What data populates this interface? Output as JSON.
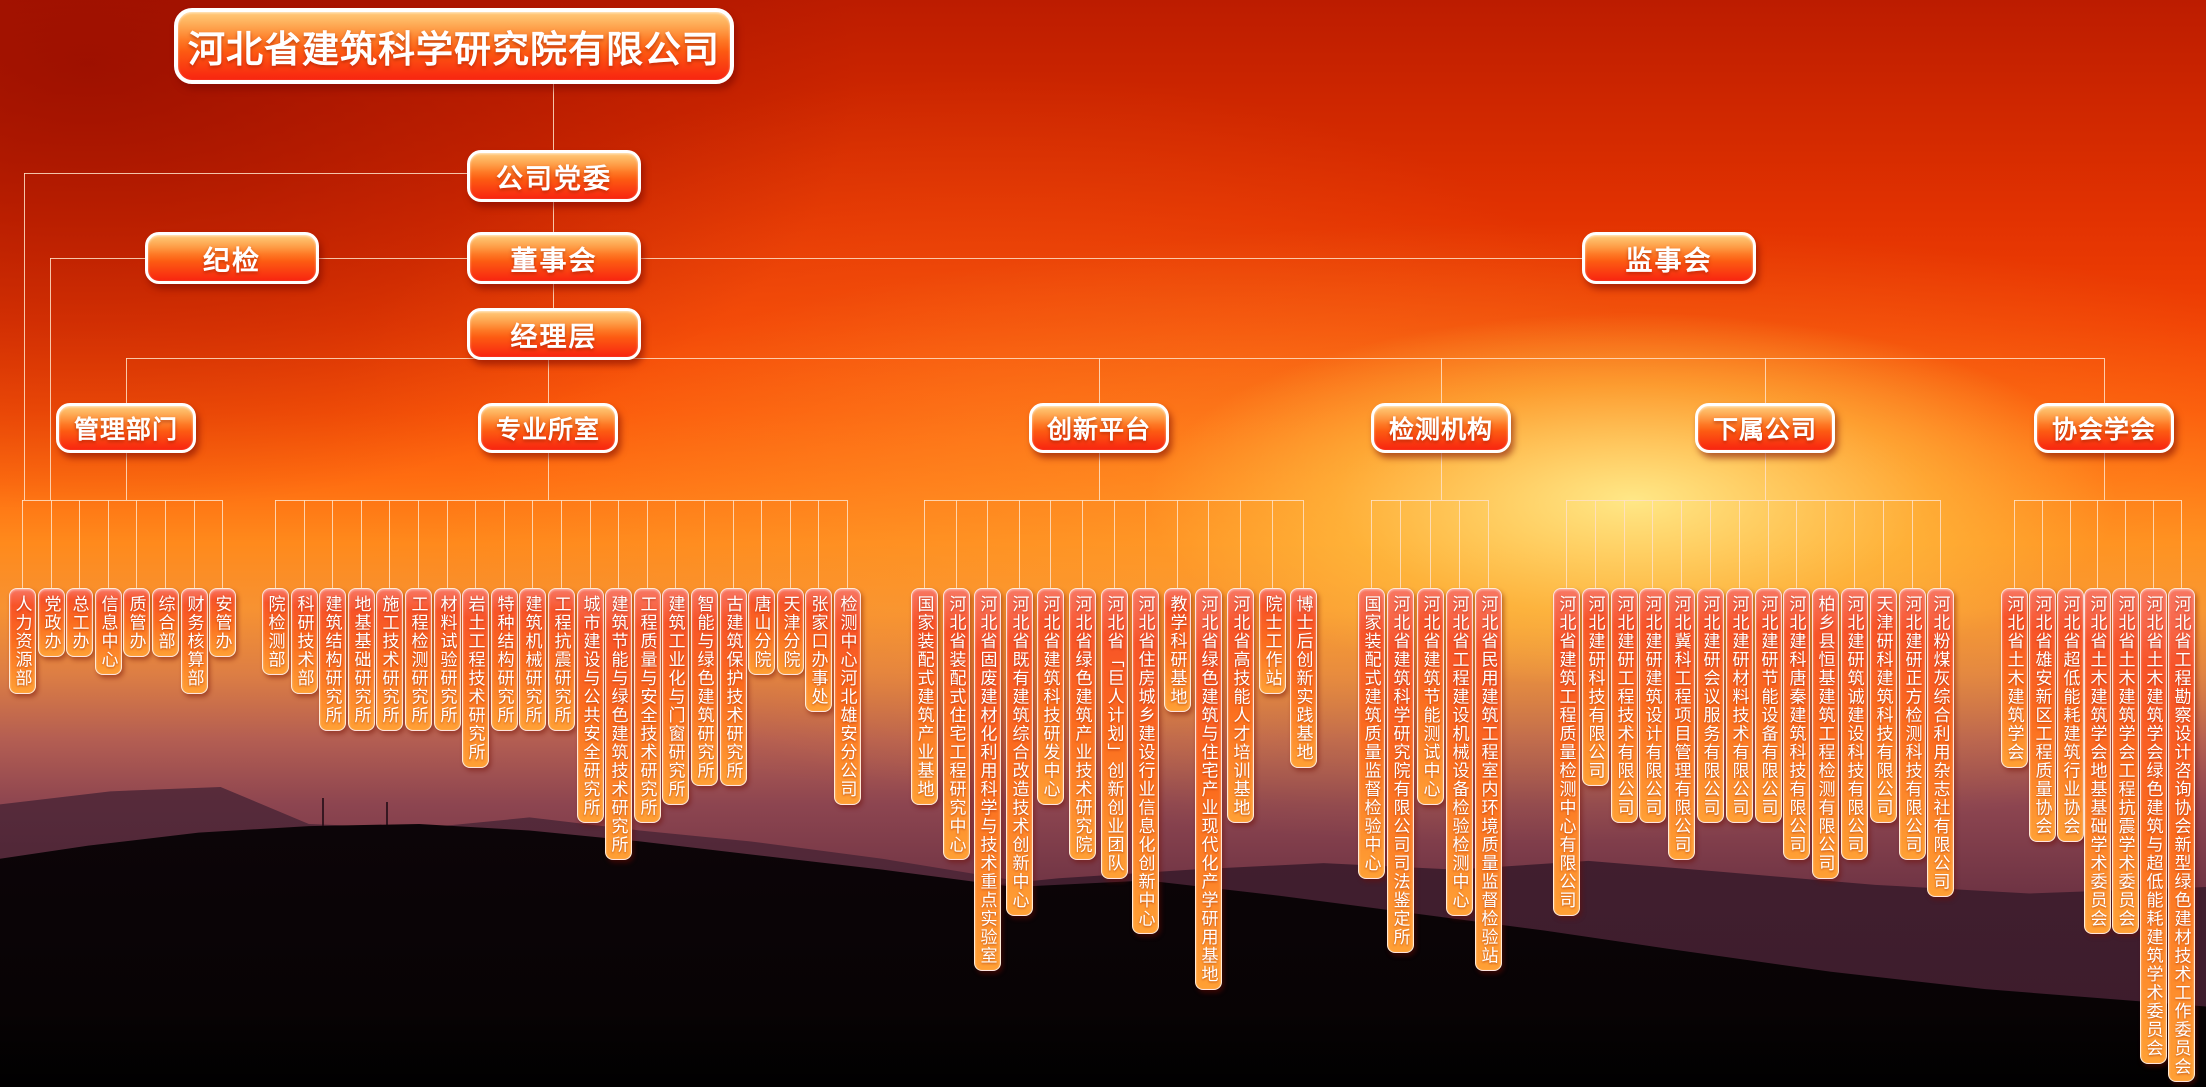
{
  "org": {
    "root": "河北省建筑科学研究院有限公司",
    "level2": {
      "party_committee": "公司党委",
      "discipline_inspection": "纪检",
      "board_of_directors": "董事会",
      "board_of_supervisors": "监事会",
      "management_team": "经理层"
    },
    "groups": [
      {
        "label": "管理部门",
        "children": [
          "人力资源部",
          "党政办",
          "总工办",
          "信息中心",
          "质管办",
          "综合部",
          "财务核算部",
          "安管办"
        ]
      },
      {
        "label": "专业所室",
        "children": [
          "院检测部",
          "科研技术部",
          "建筑结构研究所",
          "地基基础研究所",
          "施工技术研究所",
          "工程检测研究所",
          "材料试验研究所",
          "岩土工程技术研究所",
          "特种结构研究所",
          "建筑机械研究所",
          "工程抗震研究所",
          "城市建设与公共安全研究所",
          "建筑节能与绿色建筑技术研究所",
          "工程质量与安全技术研究所",
          "建筑工业化与门窗研究所",
          "智能与绿色建筑研究所",
          "古建筑保护技术研究所",
          "唐山分院",
          "天津分院",
          "张家口办事处",
          "检测中心河北雄安分公司"
        ]
      },
      {
        "label": "创新平台",
        "children": [
          "国家装配式建筑产业基地",
          "河北省装配式住宅工程研究中心",
          "河北省固废建材化利用科学与技术重点实验室",
          "河北省既有建筑综合改造技术创新中心",
          "河北省建筑科技研发中心",
          "河北省绿色建筑产业技术研究院",
          "河北省「巨人计划」创新创业团队",
          "河北省住房城乡建设行业信息化创新中心",
          "教学科研基地",
          "河北省绿色建筑与住宅产业现代化产学研用基地",
          "河北省高技能人才培训基地",
          "院士工作站",
          "博士后创新实践基地"
        ]
      },
      {
        "label": "检测机构",
        "children": [
          "国家装配式建筑质量监督检验中心",
          "河北省建筑科学研究院有限公司司法鉴定所",
          "河北省建筑节能测试中心",
          "河北省工程建设机械设备检验检测中心",
          "河北省民用建筑工程室内环境质量监督检验站"
        ]
      },
      {
        "label": "下属公司",
        "children": [
          "河北省建筑工程质量检测中心有限公司",
          "河北建研科技有限公司",
          "河北建研工程技术有限公司",
          "河北建研建筑设计有限公司",
          "河北冀科工程项目管理有限公司",
          "河北建研会议服务有限公司",
          "河北建研材料技术有限公司",
          "河北建研节能设备有限公司",
          "河北建科唐秦建筑科技有限公司",
          "柏乡县恒基建筑工程检测有限公司",
          "河北建研筑诚建设科技有限公司",
          "天津研科建筑科技有限公司",
          "河北建研正方检测科技有限公司",
          "河北粉煤灰综合利用杂志社有限公司"
        ]
      },
      {
        "label": "协会学会",
        "children": [
          "河北省土木建筑学会",
          "河北省雄安新区工程质量协会",
          "河北省超低能耗建筑行业协会",
          "河北省土木建筑学会地基基础学术委员会",
          "河北省土木建筑学会工程抗震学术委员会",
          "河北省土木建筑学会绿色建筑与超低能耗建筑学术委员会",
          "河北省工程勘察设计咨询协会新型绿色建材技术工作委员会"
        ]
      }
    ]
  },
  "colors": {
    "box_gradient_top": "#ffaa28",
    "box_gradient_bottom": "#f82410",
    "leaf_gradient_top": "#f6482c",
    "leaf_gradient_bottom": "#ffa035",
    "connector_line": "#ffe0c6",
    "text": "#ffffff",
    "sky_top": "#bc1c00",
    "sun_glow": "#ffec8c"
  }
}
